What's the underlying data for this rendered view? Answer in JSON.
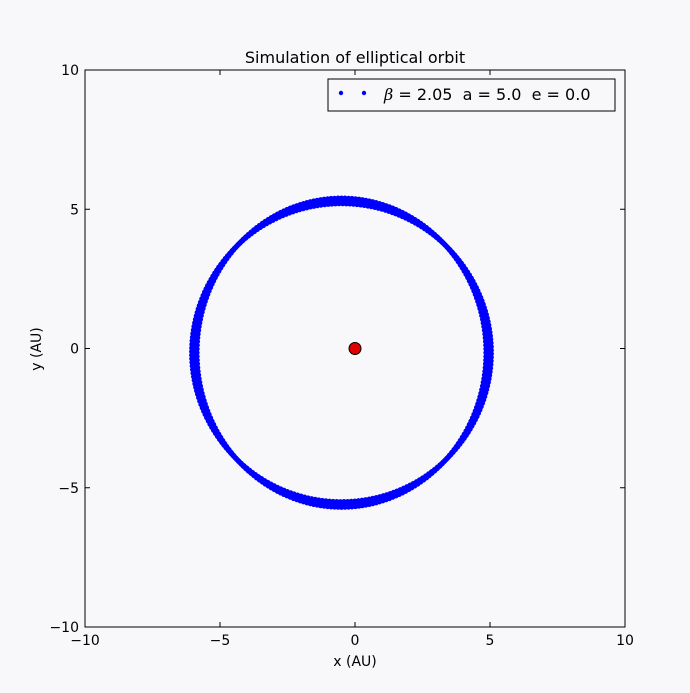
{
  "chart_data": {
    "type": "scatter",
    "title": "Simulation of elliptical orbit",
    "xlabel": "x (AU)",
    "ylabel": "y (AU)",
    "xlim": [
      -10,
      10
    ],
    "ylim": [
      -10,
      10
    ],
    "xticks": [
      -10,
      -5,
      0,
      5,
      10
    ],
    "yticks": [
      -10,
      -5,
      0,
      5,
      10
    ],
    "xtick_labels": [
      "−10",
      "−5",
      "0",
      "5",
      "10"
    ],
    "ytick_labels": [
      "−10",
      "−5",
      "0",
      "5",
      "10"
    ],
    "grid": false,
    "legend_position": "top-right",
    "legend": {
      "beta_symbol": "β",
      "text": " = 2.05  a = 5.0  e = 0.0"
    },
    "series": [
      {
        "name": "β = 2.05  a = 5.0  e = 0.0",
        "marker": "dot",
        "color": "#0000ff",
        "orbit": {
          "center_x": -0.5,
          "center_y": -0.15,
          "rx_min": 5.35,
          "rx_max": 5.55,
          "ry_min": 5.35,
          "ry_max": 5.55
        }
      }
    ],
    "sun": {
      "x": 0,
      "y": 0,
      "color": "#e00000"
    }
  },
  "colors": {
    "background": "#f8f8fa",
    "axes_face": "#f8f8fa",
    "orbit": "#0000ff",
    "sun": "#e00000"
  }
}
